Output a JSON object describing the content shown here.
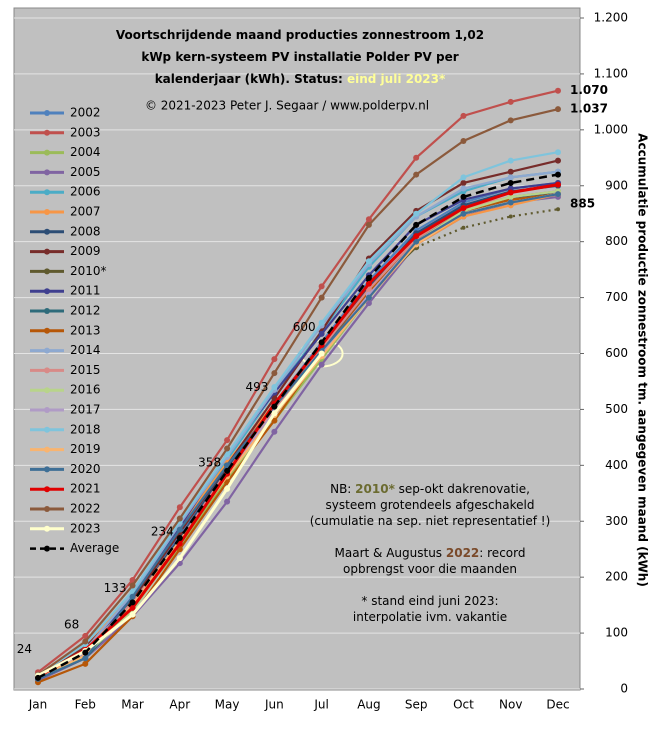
{
  "chart_data": {
    "type": "line",
    "title_lines": [
      "Voortschrijdende maand producties zonnestroom 1,02",
      "kWp kern-systeem PV installatie Polder PV per",
      "kalenderjaar (kWh). Status:"
    ],
    "status": "eind juli 2023*",
    "subtitle": "© 2021-2023 Peter J. Segaar / www.polderpv.nl",
    "y_label": "Accumulatie productie zonnestroom tm. aangegeven maand (kWh)",
    "categories": [
      "Jan",
      "Feb",
      "Mar",
      "Apr",
      "May",
      "Jun",
      "Jul",
      "Aug",
      "Sep",
      "Oct",
      "Nov",
      "Dec"
    ],
    "ylim": [
      0,
      1200
    ],
    "yticks": [
      0,
      100,
      200,
      300,
      400,
      500,
      600,
      700,
      800,
      900,
      {
        "value": 1000,
        "label": "1.000"
      },
      {
        "value": 1100,
        "label": "1.100"
      },
      {
        "value": 1200,
        "label": "1.200"
      }
    ],
    "grid": true,
    "series": [
      {
        "name": "2002",
        "color": "#4f81bd",
        "values": [
          20,
          55,
          150,
          275,
          400,
          510,
          620,
          730,
          820,
          870,
          895,
          905
        ]
      },
      {
        "name": "2003",
        "color": "#c0504d",
        "values": [
          30,
          95,
          195,
          325,
          445,
          590,
          720,
          840,
          950,
          1025,
          1050,
          1070
        ],
        "value_labels": [
          null,
          null,
          null,
          null,
          null,
          null,
          null,
          null,
          null,
          null,
          null,
          "1.070"
        ]
      },
      {
        "name": "2004",
        "color": "#9bbb59",
        "values": [
          18,
          60,
          145,
          255,
          375,
          480,
          590,
          700,
          795,
          855,
          880,
          890
        ]
      },
      {
        "name": "2005",
        "color": "#8064a2",
        "values": [
          15,
          55,
          130,
          225,
          335,
          460,
          580,
          690,
          795,
          845,
          870,
          880
        ]
      },
      {
        "name": "2006",
        "color": "#4bacc6",
        "values": [
          22,
          65,
          165,
          290,
          410,
          530,
          640,
          755,
          845,
          890,
          915,
          925
        ]
      },
      {
        "name": "2007",
        "color": "#f79646",
        "values": [
          25,
          80,
          170,
          290,
          405,
          510,
          615,
          720,
          795,
          845,
          865,
          885
        ]
      },
      {
        "name": "2008",
        "color": "#2c4d75",
        "values": [
          20,
          65,
          155,
          270,
          395,
          505,
          615,
          720,
          815,
          865,
          890,
          900
        ]
      },
      {
        "name": "2009",
        "color": "#772c2a",
        "values": [
          22,
          75,
          160,
          280,
          400,
          520,
          640,
          770,
          855,
          905,
          925,
          945
        ]
      },
      {
        "name": "2010*",
        "color": "#5f5a2e",
        "values": [
          20,
          65,
          150,
          265,
          385,
          500,
          610,
          710,
          790,
          825,
          845,
          858
        ],
        "dash_from_index": 8
      },
      {
        "name": "2011",
        "color": "#3f3f8f",
        "values": [
          20,
          70,
          165,
          290,
          420,
          530,
          635,
          740,
          830,
          875,
          895,
          905
        ]
      },
      {
        "name": "2012",
        "color": "#2e6b7a",
        "values": [
          18,
          55,
          145,
          265,
          390,
          500,
          605,
          710,
          805,
          855,
          875,
          890
        ]
      },
      {
        "name": "2013",
        "color": "#b65708",
        "values": [
          12,
          45,
          130,
          250,
          370,
          480,
          600,
          710,
          800,
          855,
          875,
          885
        ]
      },
      {
        "name": "2014",
        "color": "#8ea9d0",
        "values": [
          22,
          70,
          170,
          295,
          415,
          535,
          650,
          760,
          845,
          895,
          915,
          925
        ]
      },
      {
        "name": "2015",
        "color": "#d88a87",
        "values": [
          20,
          70,
          155,
          265,
          390,
          500,
          610,
          715,
          805,
          860,
          880,
          890
        ]
      },
      {
        "name": "2016",
        "color": "#b8d48a",
        "values": [
          20,
          60,
          140,
          260,
          385,
          490,
          595,
          705,
          800,
          855,
          880,
          890
        ]
      },
      {
        "name": "2017",
        "color": "#b09bc6",
        "values": [
          20,
          65,
          150,
          265,
          385,
          495,
          600,
          705,
          800,
          850,
          870,
          885
        ]
      },
      {
        "name": "2018",
        "color": "#7fc4dc",
        "values": [
          25,
          80,
          175,
          300,
          420,
          540,
          655,
          765,
          850,
          915,
          945,
          960
        ]
      },
      {
        "name": "2019",
        "color": "#f9b46f",
        "values": [
          22,
          60,
          150,
          265,
          380,
          490,
          595,
          700,
          795,
          850,
          870,
          885
        ]
      },
      {
        "name": "2020",
        "color": "#3e6f96",
        "values": [
          18,
          55,
          165,
          285,
          400,
          505,
          605,
          700,
          800,
          850,
          870,
          885
        ],
        "value_labels": [
          null,
          null,
          null,
          null,
          null,
          null,
          null,
          null,
          null,
          null,
          null,
          "885"
        ]
      },
      {
        "name": "2021",
        "color": "#e00000",
        "values": [
          22,
          70,
          145,
          260,
          385,
          510,
          615,
          725,
          810,
          860,
          888,
          902
        ]
      },
      {
        "name": "2022",
        "color": "#8b5a3c",
        "values": [
          25,
          85,
          185,
          305,
          430,
          565,
          700,
          830,
          920,
          980,
          1017,
          1037
        ],
        "value_labels": [
          null,
          null,
          null,
          null,
          null,
          null,
          null,
          null,
          null,
          null,
          null,
          "1.037"
        ]
      },
      {
        "name": "2023",
        "color": "#ffffcc",
        "values": [
          24,
          68,
          133,
          234,
          358,
          493,
          600,
          null,
          null,
          null,
          null,
          null
        ],
        "value_labels": [
          "24",
          "68",
          "133",
          "234",
          "358",
          "493",
          "600",
          null,
          null,
          null,
          null,
          null
        ]
      },
      {
        "name": "Average",
        "color": "#000000",
        "style": "dashed",
        "values": [
          20,
          65,
          155,
          270,
          390,
          505,
          620,
          735,
          830,
          880,
          905,
          920
        ]
      }
    ],
    "annotations": [
      [
        {
          "text": "NB: "
        },
        {
          "text": "2010*",
          "color": "#6b6b30",
          "bold": true
        },
        {
          "text": " sep-okt dakrenovatie,"
        }
      ],
      [
        {
          "text": "systeem grotendeels afgeschakeld"
        }
      ],
      [
        {
          "text": "(cumulatie na sep. niet representatief !)"
        }
      ],
      [
        {
          "text": "Maart & Augustus "
        },
        {
          "text": "2022",
          "color": "#7a4a2a",
          "bold": true
        },
        {
          "text": ": record"
        }
      ],
      [
        {
          "text": "opbrengst voor die maanden"
        }
      ],
      [
        {
          "text": "* stand eind juni 2023:"
        }
      ],
      [
        {
          "text": "interpolatie ivm. vakantie"
        }
      ]
    ]
  }
}
